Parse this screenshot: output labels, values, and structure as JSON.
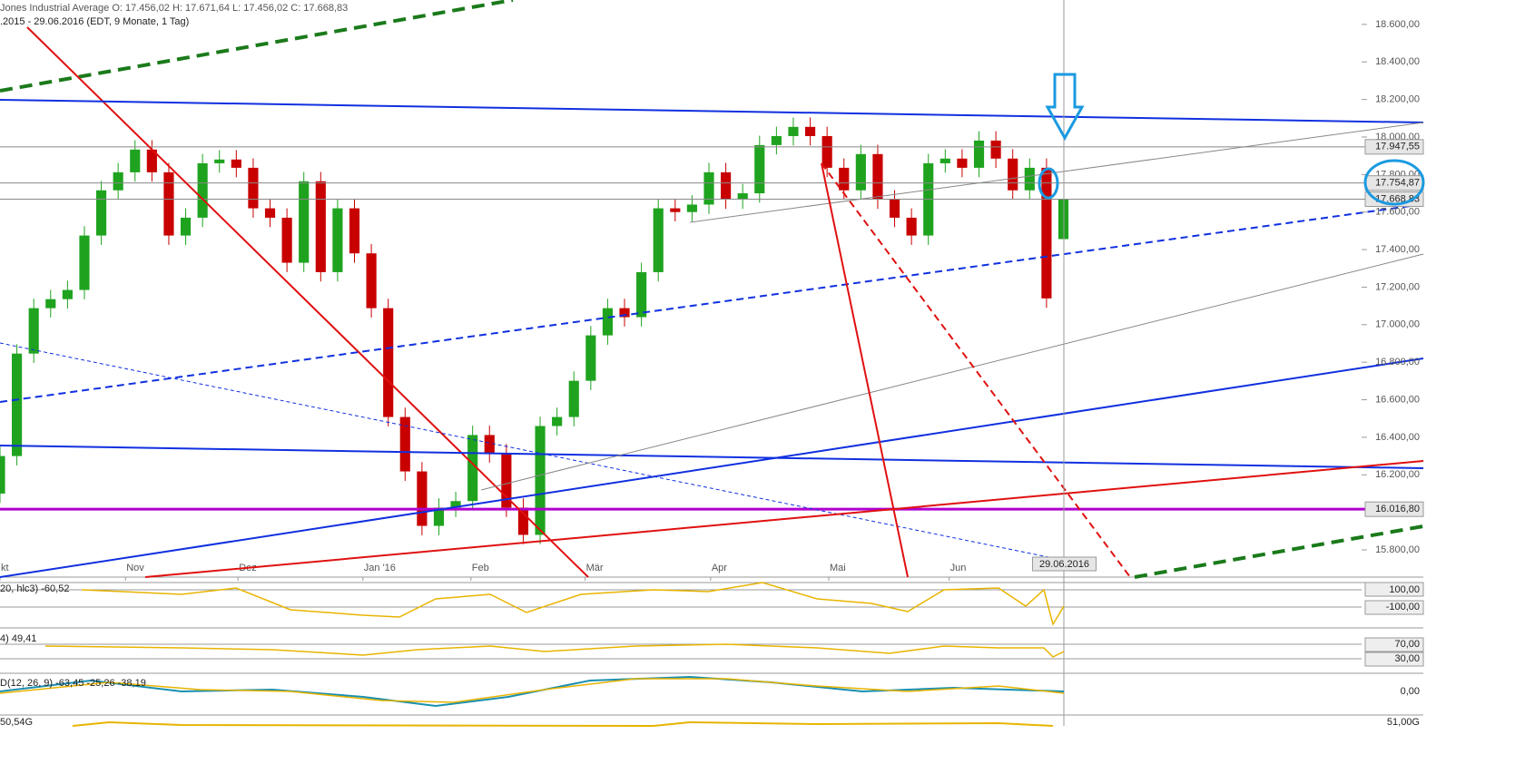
{
  "header": {
    "instrument": "Jones Industrial Average    O: 17.456,02    H: 17.671,64    L: 17.456,02    C: 17.668,83",
    "range": ".2015 - 29.06.2016 (EDT, 9 Monate, 1 Tag)"
  },
  "chart_data": {
    "type": "candlestick",
    "up_color": "#1fa31f",
    "down_color": "#c80000",
    "x": [
      0,
      3,
      6,
      9,
      12,
      15,
      18,
      21,
      24,
      27,
      30,
      33,
      36,
      39,
      42,
      45,
      48,
      51,
      54,
      57,
      60,
      63,
      66,
      69,
      72,
      75,
      78,
      81,
      84,
      87,
      90,
      93,
      96,
      99,
      102,
      105,
      108,
      111,
      114,
      117,
      120,
      123,
      126,
      129,
      132,
      135,
      138,
      141,
      144,
      147,
      150,
      153,
      156,
      159,
      162,
      165,
      168,
      171,
      174,
      177,
      180,
      183,
      186,
      189
    ],
    "open": [
      16100,
      16300,
      16846,
      17088,
      17136,
      17185,
      17475,
      17716,
      17812,
      17933,
      17812,
      17475,
      17570,
      17860,
      17880,
      17836,
      17620,
      17570,
      17330,
      17764,
      17280,
      17620,
      17380,
      17088,
      16508,
      16218,
      15928,
      16025,
      16060,
      16412,
      16315,
      16025,
      15880,
      16460,
      16508,
      16701,
      16943,
      17088,
      17040,
      17280,
      17620,
      17600,
      17640,
      17812,
      17667,
      17700,
      17957,
      18005,
      18054,
      18005,
      17836,
      17716,
      17909,
      17667,
      17570,
      17475,
      17860,
      17885,
      17836,
      17981,
      17885,
      17716,
      17836,
      17456.02
    ],
    "high": [
      16350,
      16896,
      17138,
      17186,
      17235,
      17525,
      17766,
      17862,
      17983,
      17983,
      17862,
      17620,
      17910,
      17930,
      17930,
      17886,
      17670,
      17620,
      17814,
      17814,
      17670,
      17670,
      17430,
      17138,
      16558,
      16268,
      16075,
      16110,
      16462,
      16462,
      16365,
      16075,
      16510,
      16558,
      16751,
      16993,
      17138,
      17138,
      17330,
      17670,
      17670,
      17690,
      17862,
      17862,
      17750,
      18007,
      18055,
      18104,
      18104,
      18055,
      17886,
      17959,
      17959,
      17717,
      17620,
      17910,
      17935,
      17935,
      18031,
      18031,
      17935,
      17886,
      17886,
      17671.64
    ],
    "low": [
      16050,
      16250,
      16796,
      17038,
      17086,
      17135,
      17425,
      17666,
      17762,
      17762,
      17425,
      17425,
      17520,
      17810,
      17786,
      17570,
      17520,
      17280,
      17280,
      17230,
      17230,
      17330,
      17038,
      16458,
      16168,
      15878,
      15878,
      15975,
      16010,
      16265,
      15975,
      15830,
      15830,
      16410,
      16458,
      16651,
      16893,
      16990,
      16990,
      17230,
      17550,
      17550,
      17590,
      17617,
      17617,
      17650,
      17907,
      17955,
      17955,
      17786,
      17666,
      17666,
      17617,
      17520,
      17425,
      17425,
      17810,
      17786,
      17786,
      17835,
      17666,
      17666,
      17090,
      17456.02
    ],
    "close": [
      16300,
      16846,
      17088,
      17136,
      17185,
      17475,
      17716,
      17812,
      17933,
      17812,
      17475,
      17570,
      17860,
      17880,
      17836,
      17620,
      17570,
      17330,
      17764,
      17280,
      17620,
      17380,
      17088,
      16508,
      16218,
      15928,
      16025,
      16060,
      16412,
      16315,
      16025,
      15880,
      16460,
      16508,
      16701,
      16943,
      17088,
      17040,
      17280,
      17620,
      17600,
      17640,
      17812,
      17667,
      17700,
      17957,
      18005,
      18054,
      18005,
      17836,
      17716,
      17909,
      17667,
      17570,
      17475,
      17860,
      17885,
      17836,
      17981,
      17885,
      17716,
      17836,
      17140,
      17668.83
    ],
    "xlim": [
      0,
      242
    ],
    "xticks": [
      {
        "value": 0,
        "label": "kt"
      },
      {
        "value": 22.3,
        "label": "Nov"
      },
      {
        "value": 42.3,
        "label": "Dez"
      },
      {
        "value": 64.5,
        "label": "Jan '16"
      },
      {
        "value": 83.7,
        "label": "Feb"
      },
      {
        "value": 104,
        "label": "Mär"
      },
      {
        "value": 126.3,
        "label": "Apr"
      },
      {
        "value": 147.3,
        "label": "Mai"
      },
      {
        "value": 168.7,
        "label": "Jun"
      }
    ],
    "ylim": [
      15655,
      18730
    ],
    "yticks": [
      {
        "value": 15800,
        "label": "15.800,00"
      },
      {
        "value": 16200,
        "label": "16.200,00"
      },
      {
        "value": 16400,
        "label": "16.400,00"
      },
      {
        "value": 16600,
        "label": "16.600,00"
      },
      {
        "value": 16800,
        "label": "16.800,00"
      },
      {
        "value": 17000,
        "label": "17.000,00"
      },
      {
        "value": 17200,
        "label": "17.200,00"
      },
      {
        "value": 17400,
        "label": "17.400,00"
      },
      {
        "value": 17600,
        "label": "17.600,00"
      },
      {
        "value": 17800,
        "label": "17.800,00"
      },
      {
        "value": 18000,
        "label": "18.000,00"
      },
      {
        "value": 18200,
        "label": "18.200,00"
      },
      {
        "value": 18400,
        "label": "18.400,00"
      },
      {
        "value": 18600,
        "label": "18.600,00"
      }
    ],
    "price_lines": [
      {
        "value": 17947.55,
        "label": "17.947,55",
        "color": "#888888"
      },
      {
        "value": 17754.87,
        "label": "17.754,87",
        "color": "#888888"
      },
      {
        "value": 17668.83,
        "label": "17.668,83",
        "color": "#888888"
      },
      {
        "value": 16016.8,
        "label": "16.016,80",
        "color": "#b000d0"
      }
    ],
    "date_marker": {
      "value": 189,
      "label": "29.06.2016"
    }
  },
  "indicators": {
    "cci": {
      "label": "20, hlc3) -60,52",
      "upper": "100,00",
      "lower": "-100,00"
    },
    "rsi": {
      "label": "4) 49,41",
      "upper": "70,00",
      "lower": "30,00"
    },
    "macd": {
      "label": "D(12, 26, 9) -63,45  -25,26  -38,19",
      "zero": "0,00"
    },
    "volume": {
      "label": "50,54G",
      "axis": "51,00G"
    }
  }
}
